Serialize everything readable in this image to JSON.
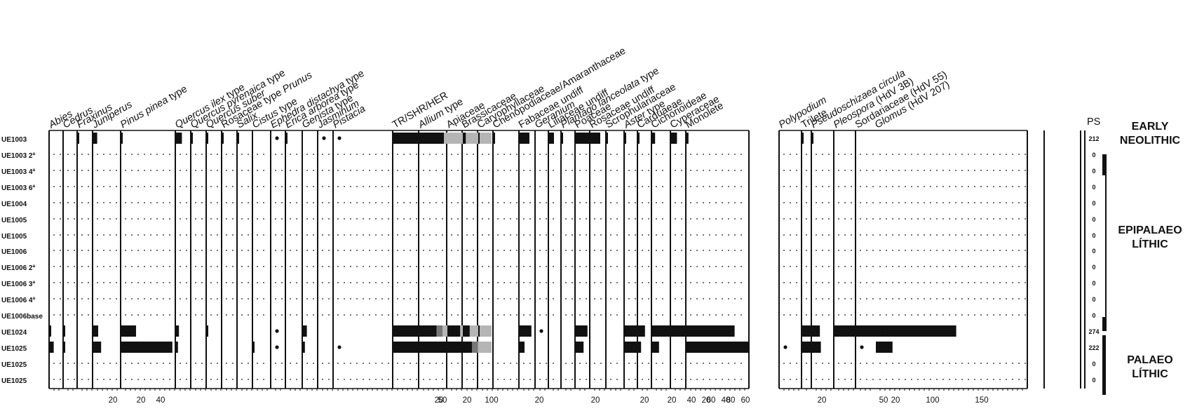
{
  "chart_data": {
    "type": "bar",
    "title": "",
    "ps_header": "PS",
    "samples": [
      "UE1003",
      "UE1003 2ª",
      "UE1003 4ª",
      "UE1003 6ª",
      "UE1004",
      "UE1005",
      "UE1005",
      "UE1006",
      "UE1006 2ª",
      "UE1006 3ª",
      "UE1006 4ª",
      "UE1006base",
      "UE1024",
      "UE1025",
      "UE1025",
      "UE1025"
    ],
    "ps": [
      "212",
      "0",
      "0",
      "0",
      "0",
      "0",
      "0",
      "0",
      "0",
      "0",
      "0",
      "0",
      "274",
      "222",
      "0",
      "0"
    ],
    "periods": [
      {
        "lines": [
          "EARLY",
          "NEOLITHIC"
        ]
      },
      {
        "lines": [
          "EPIPALAEO",
          "LÍTHIC"
        ]
      },
      {
        "lines": [
          "PALAEO",
          "LÍTHIC"
        ]
      }
    ],
    "taxa": [
      {
        "name": "Abies",
        "ticks": [],
        "values": [
          0,
          null,
          null,
          null,
          null,
          null,
          null,
          null,
          null,
          null,
          null,
          null,
          1,
          4,
          null,
          null
        ]
      },
      {
        "name": "Cedrus",
        "ticks": [],
        "values": [
          0,
          null,
          null,
          null,
          null,
          null,
          null,
          null,
          null,
          null,
          null,
          null,
          1,
          1,
          null,
          null
        ]
      },
      {
        "name": "Fraxinus",
        "ticks": [],
        "values": [
          0.3,
          null,
          null,
          null,
          null,
          null,
          null,
          null,
          null,
          null,
          null,
          null,
          0,
          0,
          null,
          null
        ]
      },
      {
        "name": "Juniperus",
        "ticks": [
          "20"
        ],
        "values": [
          4,
          null,
          null,
          null,
          null,
          null,
          null,
          null,
          null,
          null,
          null,
          null,
          5,
          8,
          null,
          null
        ]
      },
      {
        "name": "Pinus pinea type",
        "ticks": [
          "20",
          "40"
        ],
        "values": [
          1,
          null,
          null,
          null,
          null,
          null,
          null,
          null,
          null,
          null,
          null,
          null,
          15,
          52,
          null,
          null
        ]
      },
      {
        "name": "Quercus ilex type",
        "ticks": [],
        "values": [
          6,
          null,
          null,
          null,
          null,
          null,
          null,
          null,
          null,
          null,
          null,
          null,
          3,
          2,
          null,
          null
        ]
      },
      {
        "name": "Quercus pyrenaica type",
        "ticks": [],
        "values": [
          1,
          null,
          null,
          null,
          null,
          null,
          null,
          null,
          null,
          null,
          null,
          null,
          0,
          0,
          null,
          null
        ]
      },
      {
        "name": "Quercus suber",
        "ticks": [],
        "values": [
          0.3,
          null,
          null,
          null,
          null,
          null,
          null,
          null,
          null,
          null,
          null,
          null,
          1,
          0,
          null,
          null
        ]
      },
      {
        "name": "Rosaceae type Prunus",
        "ticks": [],
        "values": [
          0.3,
          null,
          null,
          null,
          null,
          null,
          null,
          null,
          null,
          null,
          null,
          null,
          0,
          0,
          null,
          null
        ]
      },
      {
        "name": "Salix",
        "ticks": [],
        "values": [
          0.3,
          null,
          null,
          null,
          null,
          null,
          null,
          null,
          null,
          null,
          null,
          null,
          0,
          0,
          null,
          null
        ]
      },
      {
        "name": "Cistus type",
        "ticks": [],
        "values": [
          0,
          null,
          null,
          null,
          null,
          null,
          null,
          null,
          null,
          null,
          null,
          null,
          0,
          0.3,
          null,
          null
        ]
      },
      {
        "name": "Ephedra distachya type",
        "ticks": [],
        "values": [
          0.5,
          null,
          null,
          null,
          null,
          null,
          null,
          null,
          null,
          null,
          null,
          null,
          0.5,
          0.5,
          null,
          null
        ]
      },
      {
        "name": "Erica arborea type",
        "ticks": [],
        "values": [
          0.3,
          null,
          null,
          null,
          null,
          null,
          null,
          null,
          null,
          null,
          null,
          null,
          0,
          0,
          null,
          null
        ]
      },
      {
        "name": "Genista type",
        "ticks": [],
        "values": [
          0,
          null,
          null,
          null,
          null,
          null,
          null,
          null,
          null,
          null,
          null,
          null,
          4,
          2,
          null,
          null
        ]
      },
      {
        "name": "Jasminum",
        "ticks": [],
        "values": [
          0.5,
          null,
          null,
          null,
          null,
          null,
          null,
          null,
          null,
          null,
          null,
          null,
          0,
          0,
          null,
          null
        ]
      },
      {
        "name": "Pistacia",
        "ticks": [],
        "values": [
          0.5,
          null,
          null,
          null,
          null,
          null,
          null,
          null,
          null,
          null,
          null,
          null,
          0,
          0.5,
          null,
          null
        ]
      },
      {
        "name": "TR/SHR/HER",
        "ticks": [
          "50",
          "100"
        ],
        "stacked": true,
        "values": [
          [
            28,
            72
          ],
          null,
          null,
          null,
          null,
          null,
          null,
          null,
          null,
          null,
          null,
          null,
          [
            44,
            56
          ],
          [
            80,
            20
          ],
          null,
          null
        ]
      },
      {
        "name": "Allium type",
        "ticks": [
          "20"
        ],
        "values": [
          25,
          null,
          null,
          null,
          null,
          null,
          null,
          null,
          null,
          null,
          null,
          null,
          0,
          1,
          null,
          null
        ]
      },
      {
        "name": "Apiaceae",
        "ticks": [
          "20"
        ],
        "values": [
          0,
          null,
          null,
          null,
          null,
          null,
          null,
          null,
          null,
          null,
          null,
          null,
          13,
          0,
          null,
          null
        ]
      },
      {
        "name": "Brassicaceae",
        "ticks": [],
        "values": [
          3,
          null,
          null,
          null,
          null,
          null,
          null,
          null,
          null,
          null,
          null,
          null,
          7,
          2,
          null,
          null
        ]
      },
      {
        "name": "Caryophyllaceae",
        "ticks": [],
        "values": [
          0.3,
          null,
          null,
          null,
          null,
          null,
          null,
          null,
          null,
          null,
          null,
          null,
          1,
          0,
          null,
          null
        ]
      },
      {
        "name": "Chenopodiaceae/Amaranthaceae",
        "ticks": [],
        "values": [
          0.3,
          null,
          null,
          null,
          null,
          null,
          null,
          null,
          null,
          null,
          null,
          null,
          0,
          0,
          null,
          null
        ]
      },
      {
        "name": "Fabaceae undiff",
        "ticks": [
          "20"
        ],
        "values": [
          10,
          null,
          null,
          null,
          null,
          null,
          null,
          null,
          null,
          null,
          null,
          null,
          12,
          5,
          null,
          null
        ]
      },
      {
        "name": "Geranium",
        "ticks": [],
        "values": [
          0,
          null,
          null,
          null,
          null,
          null,
          null,
          null,
          null,
          null,
          null,
          null,
          0.5,
          0,
          null,
          null
        ]
      },
      {
        "name": "Liliaceae undiff",
        "ticks": [],
        "values": [
          5,
          null,
          null,
          null,
          null,
          null,
          null,
          null,
          null,
          null,
          null,
          null,
          0,
          0,
          null,
          null
        ]
      },
      {
        "name": "Plantago lanceolata type",
        "ticks": [],
        "values": [
          0.3,
          null,
          null,
          null,
          null,
          null,
          null,
          null,
          null,
          null,
          null,
          null,
          0,
          0,
          null,
          null
        ]
      },
      {
        "name": "Poaceae",
        "ticks": [
          "20"
        ],
        "values": [
          25,
          null,
          null,
          null,
          null,
          null,
          null,
          null,
          null,
          null,
          null,
          null,
          12,
          8,
          null,
          null
        ]
      },
      {
        "name": "Rosaceae undiff",
        "ticks": [],
        "values": [
          0.3,
          null,
          null,
          null,
          null,
          null,
          null,
          null,
          null,
          null,
          null,
          null,
          0,
          0,
          null,
          null
        ]
      },
      {
        "name": "Scrophulariaceae",
        "ticks": [],
        "values": [
          0.3,
          null,
          null,
          null,
          null,
          null,
          null,
          null,
          null,
          null,
          null,
          null,
          0,
          0,
          null,
          null
        ]
      },
      {
        "name": "Aster type",
        "ticks": [
          "20"
        ],
        "values": [
          1,
          null,
          null,
          null,
          null,
          null,
          null,
          null,
          null,
          null,
          null,
          null,
          15,
          14,
          null,
          null
        ]
      },
      {
        "name": "Carduaeae",
        "ticks": [],
        "values": [
          0.3,
          null,
          null,
          null,
          null,
          null,
          null,
          null,
          null,
          null,
          null,
          null,
          7,
          3,
          null,
          null
        ]
      },
      {
        "name": "Cichorioideae",
        "ticks": [
          "20",
          "40",
          "60",
          "80"
        ],
        "values": [
          3,
          null,
          null,
          null,
          null,
          null,
          null,
          null,
          null,
          null,
          null,
          null,
          84,
          7,
          null,
          null
        ]
      },
      {
        "name": "Cyperaceae",
        "ticks": [],
        "values": [
          6,
          null,
          null,
          null,
          null,
          null,
          null,
          null,
          null,
          null,
          null,
          null,
          0,
          0,
          null,
          null
        ]
      },
      {
        "name": "Monolete",
        "ticks": [
          "20",
          "40",
          "60"
        ],
        "values": [
          2,
          null,
          null,
          null,
          null,
          null,
          null,
          null,
          null,
          null,
          null,
          null,
          22,
          64,
          null,
          null
        ]
      },
      {
        "name": "Polypodium",
        "ticks": [],
        "values": [
          0,
          null,
          null,
          null,
          null,
          null,
          null,
          null,
          null,
          null,
          null,
          null,
          0,
          0.5,
          null,
          null
        ]
      },
      {
        "name": "Trilete",
        "ticks": [
          "20"
        ],
        "values": [
          1,
          null,
          null,
          null,
          null,
          null,
          null,
          null,
          null,
          null,
          null,
          null,
          13,
          19,
          null,
          null
        ]
      },
      {
        "name": "Pseudoschizaea circula",
        "ticks": [],
        "values": [
          0.3,
          null,
          null,
          null,
          null,
          null,
          null,
          null,
          null,
          null,
          null,
          null,
          8,
          8,
          null,
          null
        ]
      },
      {
        "name": "Pleospora (HdV 3B)",
        "ticks": [
          "50",
          "100",
          "150"
        ],
        "values": [
          0,
          null,
          null,
          null,
          null,
          null,
          null,
          null,
          null,
          null,
          null,
          null,
          124,
          0,
          null,
          null
        ]
      },
      {
        "name": "Sordariaceae (HdV 55)",
        "ticks": [],
        "values": [
          0,
          null,
          null,
          null,
          null,
          null,
          null,
          null,
          null,
          null,
          null,
          null,
          0,
          0.5,
          null,
          null
        ]
      },
      {
        "name": "Glomus (HdV 207)",
        "ticks": [
          "20"
        ],
        "values": [
          0,
          null,
          null,
          null,
          null,
          null,
          null,
          null,
          null,
          null,
          null,
          null,
          7,
          17,
          null,
          null
        ]
      }
    ]
  }
}
